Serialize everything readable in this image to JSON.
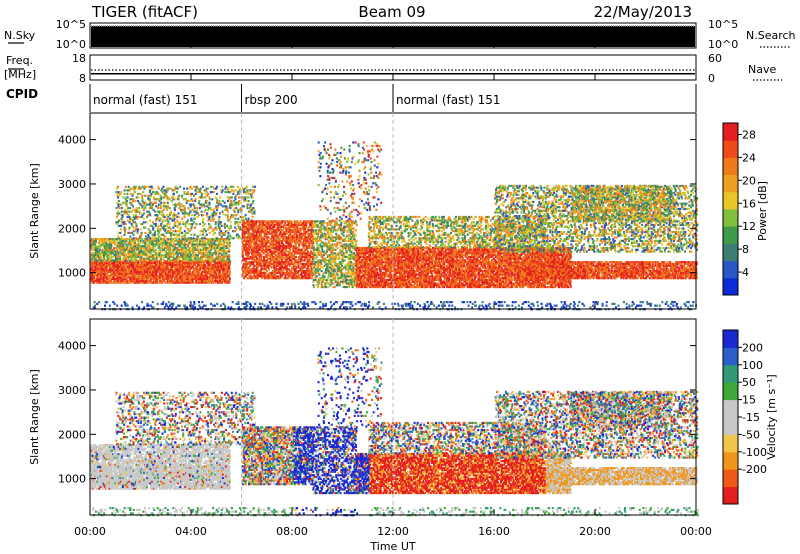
{
  "header": {
    "radar": "TIGER (fitACF)",
    "beam": "Beam 09",
    "date": "22/May/2013"
  },
  "colors": {
    "power": [
      "#0b2bd6",
      "#2a56c8",
      "#3e7d74",
      "#3f9a4a",
      "#7fbf3a",
      "#e9c628",
      "#f0a020",
      "#ee7a1c",
      "#ee4a1a",
      "#e41e1e"
    ],
    "velocity": [
      "#e41e1e",
      "#ee5a16",
      "#f0961c",
      "#f2c64a",
      "#c8c8c8",
      "#c8c8c8",
      "#3fa83a",
      "#2f9a74",
      "#2a5ec8",
      "#1a2ad0"
    ]
  },
  "chart_data": [
    {
      "type": "line",
      "name": "nsky-nsearch",
      "ylabel_left": "N.Sky",
      "ylabel_right": "N.Search",
      "yticks_left": [
        "10^5",
        "10^0"
      ],
      "yticks_right": [
        "10^5",
        "10^0"
      ],
      "ylim": [
        0,
        5
      ],
      "x_range_hours": [
        0,
        24
      ]
    },
    {
      "type": "line",
      "name": "freq-nave",
      "ylabel_left_top": "Freq.",
      "ylabel_left_bottom": "[MHz]",
      "ylabel_right": "Nave",
      "yticks_left": [
        "18",
        "8"
      ],
      "yticks_right": [
        "60",
        "0"
      ],
      "ylim_left": [
        8,
        18
      ],
      "ylim_right": [
        0,
        60
      ],
      "freq_mhz": 10.5,
      "nave": 24
    },
    {
      "type": "table",
      "name": "cpid",
      "label": "CPID",
      "segments": [
        {
          "start_hour": 0,
          "end_hour": 6,
          "text": "normal (fast) 151"
        },
        {
          "start_hour": 6,
          "end_hour": 12,
          "text": "rbsp 200"
        },
        {
          "start_hour": 12,
          "end_hour": 24,
          "text": "normal (fast) 151"
        }
      ]
    },
    {
      "type": "heatmap",
      "name": "power",
      "ylabel": "Slant Range [km]",
      "ylim": [
        180,
        4600
      ],
      "yticks": [
        1000,
        2000,
        3000,
        4000
      ],
      "colorbar_label": "Power [dB]",
      "colorbar_ticks": [
        4,
        8,
        12,
        16,
        20,
        24,
        28
      ],
      "colorbar_range": [
        0,
        30
      ]
    },
    {
      "type": "heatmap",
      "name": "velocity",
      "ylabel": "Slant Range [km]",
      "ylim": [
        180,
        4600
      ],
      "yticks": [
        1000,
        2000,
        3000,
        4000
      ],
      "colorbar_label": "Velocity [m s⁻¹]",
      "colorbar_ticks": [
        "200",
        "100",
        "50",
        "15",
        "-15",
        "-50",
        "-100",
        "-200"
      ]
    }
  ],
  "xaxis": {
    "label": "Time UT",
    "ticks": [
      "00:00",
      "04:00",
      "08:00",
      "12:00",
      "16:00",
      "20:00",
      "00:00"
    ],
    "tick_hours": [
      0,
      4,
      8,
      12,
      16,
      20,
      24
    ]
  }
}
